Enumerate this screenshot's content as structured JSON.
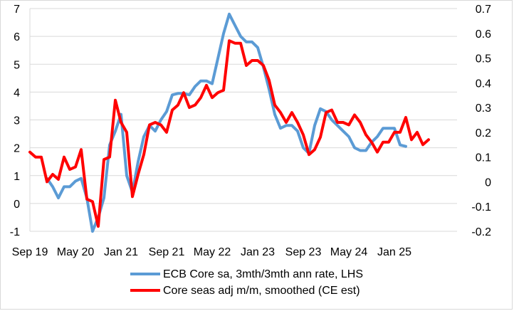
{
  "chart_data": {
    "type": "line",
    "title": "",
    "x_labels": [
      "Sep 19",
      "May 20",
      "Jan 21",
      "Sep 21",
      "May 22",
      "Jan 23",
      "Sep 23",
      "May 24",
      "Jan 25"
    ],
    "x_start": "2019-09",
    "y_left": {
      "min": -1,
      "max": 7,
      "ticks": [
        "-1",
        "0",
        "1",
        "2",
        "3",
        "4",
        "5",
        "6",
        "7"
      ]
    },
    "y_right": {
      "min": -0.2,
      "max": 0.7,
      "ticks": [
        "-0.2",
        "-0.1",
        "0",
        "0.1",
        "0.2",
        "0.3",
        "0.4",
        "0.5",
        "0.6",
        "0.7"
      ]
    },
    "grid": true,
    "legend_position": "bottom",
    "series": [
      {
        "name": "ECB Core sa, 3mth/3mth ann rate, LHS",
        "axis": "left",
        "color": "#5b9bd5",
        "start": "2019-12",
        "values": [
          0.9,
          0.6,
          0.2,
          0.6,
          0.6,
          0.8,
          0.9,
          0.2,
          -1.0,
          -0.5,
          0.2,
          2.1,
          2.6,
          3.2,
          1.0,
          0.4,
          1.5,
          2.4,
          2.8,
          2.6,
          3.0,
          3.3,
          3.9,
          3.95,
          3.95,
          3.9,
          4.2,
          4.4,
          4.4,
          4.3,
          5.2,
          6.1,
          6.8,
          6.4,
          6.0,
          5.8,
          5.8,
          5.6,
          4.9,
          4.1,
          3.2,
          2.7,
          2.8,
          2.8,
          2.6,
          2.0,
          1.8,
          2.8,
          3.4,
          3.3,
          3.0,
          2.8,
          2.6,
          2.4,
          2.0,
          1.9,
          1.9,
          2.2,
          2.4,
          2.7,
          2.7,
          2.7,
          2.1,
          2.05
        ]
      },
      {
        "name": "Core seas adj m/m, smoothed (CE est)",
        "axis": "right",
        "color": "#ff0000",
        "start": "2019-09",
        "values": [
          0.12,
          0.1,
          0.1,
          0.0,
          0.03,
          0.01,
          0.1,
          0.05,
          0.06,
          0.13,
          -0.07,
          -0.08,
          -0.18,
          0.09,
          0.1,
          0.33,
          0.24,
          0.2,
          -0.06,
          0.03,
          0.11,
          0.23,
          0.24,
          0.23,
          0.2,
          0.29,
          0.31,
          0.36,
          0.3,
          0.31,
          0.34,
          0.39,
          0.34,
          0.36,
          0.37,
          0.57,
          0.56,
          0.56,
          0.47,
          0.49,
          0.49,
          0.47,
          0.41,
          0.31,
          0.28,
          0.24,
          0.28,
          0.24,
          0.19,
          0.11,
          0.13,
          0.18,
          0.28,
          0.29,
          0.24,
          0.24,
          0.23,
          0.27,
          0.24,
          0.19,
          0.16,
          0.12,
          0.16,
          0.16,
          0.2,
          0.2,
          0.26,
          0.17,
          0.2,
          0.15,
          0.17
        ]
      }
    ]
  }
}
